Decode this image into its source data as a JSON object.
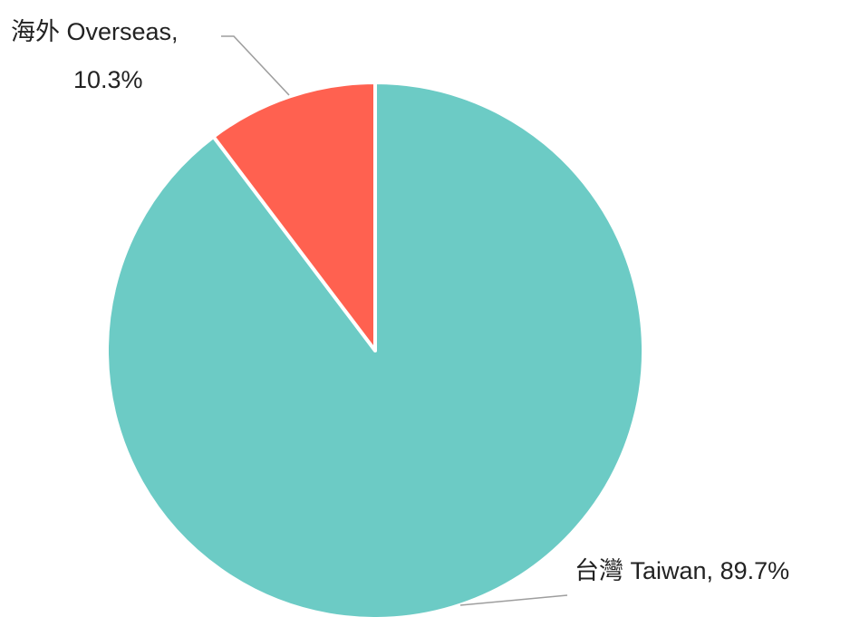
{
  "chart_data": {
    "type": "pie",
    "title": "",
    "slices": [
      {
        "label": "台灣 Taiwan",
        "value": 89.7,
        "value_label": "89.7%",
        "color": "#6ccbc5"
      },
      {
        "label": "海外 Overseas",
        "value": 10.3,
        "value_label": "10.3%",
        "color": "#ff6150"
      }
    ],
    "start_angle": "12 o'clock",
    "direction": "clockwise",
    "legend": "none",
    "data_labels": "outside with leader lines"
  }
}
